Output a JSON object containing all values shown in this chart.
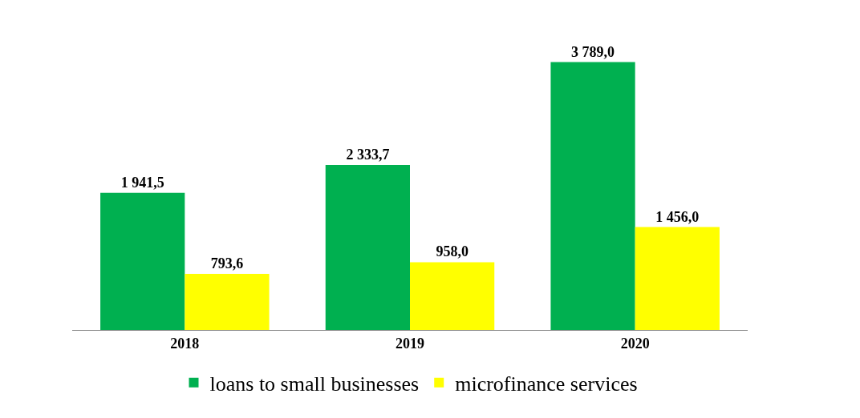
{
  "chart_data": {
    "type": "bar",
    "categories": [
      "2018",
      "2019",
      "2020"
    ],
    "series": [
      {
        "name": "loans to small businesses",
        "color": "#00b050",
        "values": [
          1941.5,
          2333.7,
          3789.0
        ],
        "value_labels": [
          "1 941,5",
          "2 333,7",
          "3 789,0"
        ]
      },
      {
        "name": "microfinance services",
        "color": "#ffff00",
        "values": [
          793.6,
          958.0,
          1456.0
        ],
        "value_labels": [
          "793,6",
          "958,0",
          "1 456,0"
        ]
      }
    ],
    "legend": "bottom"
  }
}
